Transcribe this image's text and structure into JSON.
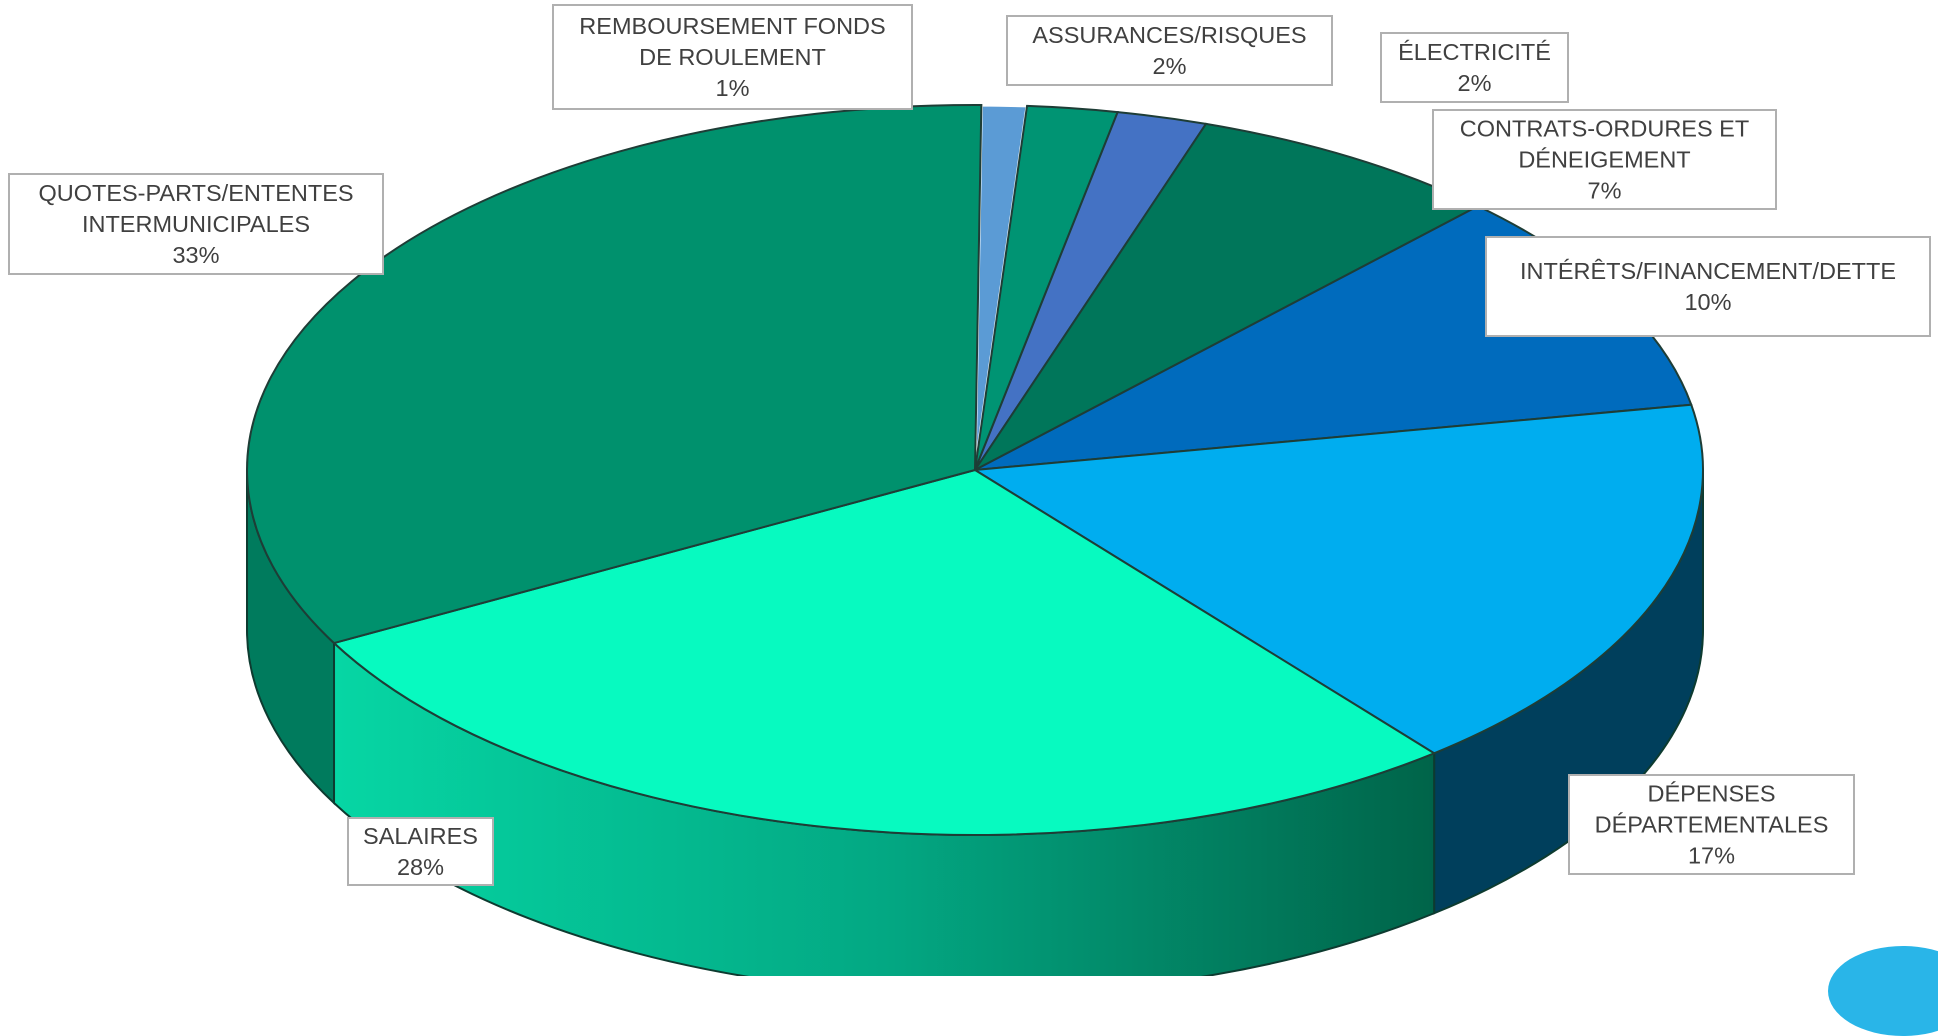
{
  "chart_data": {
    "type": "pie",
    "three_d": true,
    "title": "",
    "slices": [
      {
        "name": "REMBOURSEMENT FONDS DE ROULEMENT",
        "label_lines": [
          "REMBOURSEMENT FONDS",
          "DE ROULEMENT"
        ],
        "value": 1,
        "percent_label": "1%",
        "color": "#5b9bd5"
      },
      {
        "name": "ASSURANCES/RISQUES",
        "label_lines": [
          "ASSURANCES/RISQUES"
        ],
        "value": 2,
        "percent_label": "2%",
        "color": "#009473"
      },
      {
        "name": "ÉLECTRICITÉ",
        "label_lines": [
          "ÉLECTRICITÉ"
        ],
        "value": 2,
        "percent_label": "2%",
        "color": "#4472c4"
      },
      {
        "name": "CONTRATS-ORDURES ET DÉNEIGEMENT",
        "label_lines": [
          "CONTRATS-ORDURES ET",
          "DÉNEIGEMENT"
        ],
        "value": 7,
        "percent_label": "7%",
        "color": "#00765a"
      },
      {
        "name": "INTÉRÊTS/FINANCEMENT/DETTE",
        "label_lines": [
          "INTÉRÊTS/FINANCEMENT/DETTE"
        ],
        "value": 10,
        "percent_label": "10%",
        "color": "#006bbd"
      },
      {
        "name": "DÉPENSES DÉPARTEMENTALES",
        "label_lines": [
          "DÉPENSES",
          "DÉPARTEMENTALES"
        ],
        "value": 17,
        "percent_label": "17%",
        "color": "#00adef"
      },
      {
        "name": "SALAIRES",
        "label_lines": [
          "SALAIRES"
        ],
        "value": 28,
        "percent_label": "28%",
        "color": "#07fac0"
      },
      {
        "name": "QUOTES-PARTS/ENTENTES INTERMUNICIPALES",
        "label_lines": [
          "QUOTES-PARTS/ENTENTES",
          "INTERMUNICIPALES"
        ],
        "value": 33,
        "percent_label": "33%",
        "color": "#00916d"
      }
    ],
    "legend": "none",
    "data_labels": "outside-boxed"
  }
}
